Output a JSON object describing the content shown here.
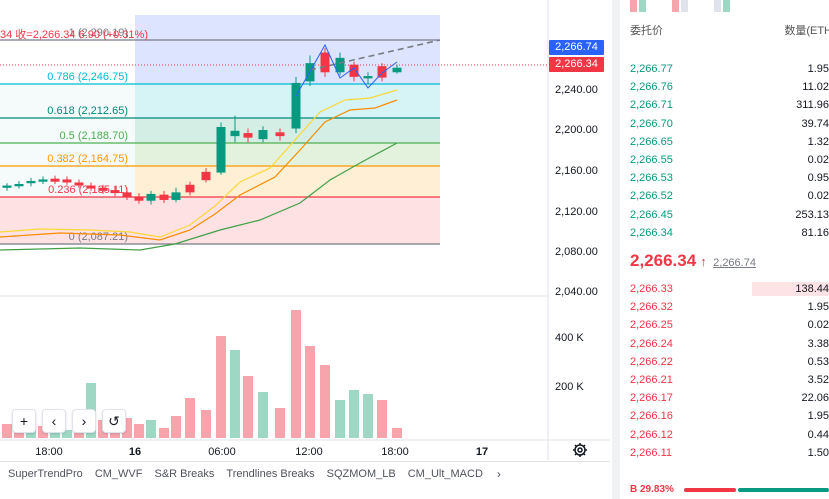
{
  "chart": {
    "ohlc_text": "34 收=2,266.34 6.90 (+0.31%)",
    "price_badges": {
      "mark_price": "2,266.74",
      "last_price": "2,266.34"
    },
    "y_axis_labels": [
      "2,240.00",
      "2,200.00",
      "2,160.00",
      "2,120.00",
      "2,080.00",
      "2,040.00"
    ],
    "volume_axis_labels": [
      "400 K",
      "200 K"
    ],
    "x_axis_labels": [
      "18:00",
      "16",
      "06:00",
      "12:00",
      "18:00",
      "17"
    ],
    "fib_levels": [
      {
        "label": "1 (2,290.19)",
        "color": "#787b86"
      },
      {
        "label": "0.786 (2,246.75)",
        "color": "#00bcd4"
      },
      {
        "label": "0.618 (2,212.65)",
        "color": "#00897b"
      },
      {
        "label": "0.5 (2,188.70)",
        "color": "#4caf50"
      },
      {
        "label": "0.382 (2,164.75)",
        "color": "#ff9800"
      },
      {
        "label": "0.236 (2,135.11)",
        "color": "#f23645"
      },
      {
        "label": "0 (2,087.21)",
        "color": "#787b86"
      }
    ],
    "colors": {
      "up": "#089981",
      "down": "#f23645",
      "up_volume": "#9ed8c5",
      "down_volume": "#f7a4ad"
    }
  },
  "toolbar": {
    "zoom_in": "+",
    "prev": "‹",
    "next": "›",
    "reset": "↺"
  },
  "indicators": [
    "SuperTrendPro",
    "CM_WVF",
    "S&R Breaks",
    "Trendlines Breaks",
    "SQZMOM_LB",
    "CM_Ult_MACD"
  ],
  "orderbook": {
    "header": {
      "price": "委托价",
      "qty": "数量(ETH"
    },
    "bids": [
      {
        "price": "2,266.77",
        "qty": "1.95"
      },
      {
        "price": "2,266.76",
        "qty": "11.02"
      },
      {
        "price": "2,266.71",
        "qty": "311.96"
      },
      {
        "price": "2,266.70",
        "qty": "39.74"
      },
      {
        "price": "2,266.65",
        "qty": "1.32"
      },
      {
        "price": "2,266.55",
        "qty": "0.02"
      },
      {
        "price": "2,266.53",
        "qty": "0.95"
      },
      {
        "price": "2,266.52",
        "qty": "0.02"
      },
      {
        "price": "2,266.45",
        "qty": "253.13"
      },
      {
        "price": "2,266.34",
        "qty": "81.16"
      }
    ],
    "last": {
      "price": "2,266.34",
      "arrow": "↑",
      "mark": "2,266.74"
    },
    "asks": [
      {
        "price": "2,266.33",
        "qty": "138.44"
      },
      {
        "price": "2,266.32",
        "qty": "1.95"
      },
      {
        "price": "2,266.25",
        "qty": "0.02"
      },
      {
        "price": "2,266.24",
        "qty": "3.38"
      },
      {
        "price": "2,266.22",
        "qty": "0.53"
      },
      {
        "price": "2,266.21",
        "qty": "3.52"
      },
      {
        "price": "2,266.17",
        "qty": "22.06"
      },
      {
        "price": "2,266.16",
        "qty": "1.95"
      },
      {
        "price": "2,266.12",
        "qty": "0.44"
      },
      {
        "price": "2,266.11",
        "qty": "1.50"
      }
    ],
    "ratio": {
      "label": "B 29.83%",
      "buy_fraction": 0.2983
    }
  }
}
